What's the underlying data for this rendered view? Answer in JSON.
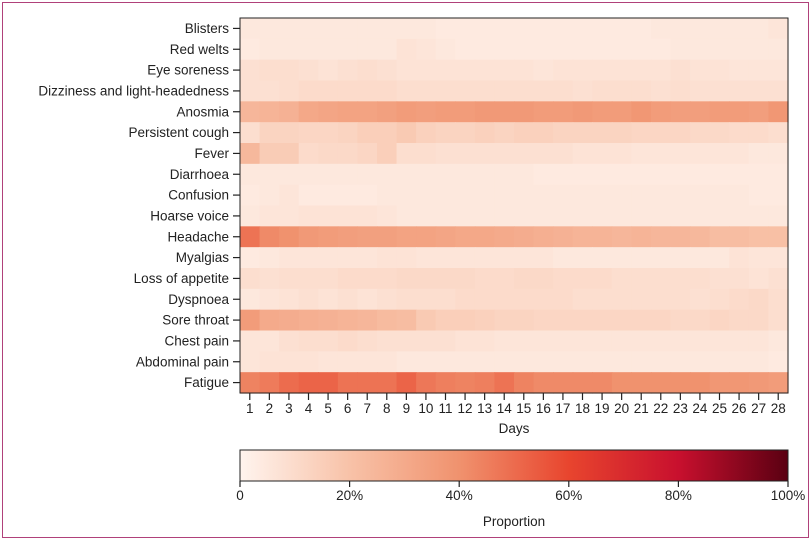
{
  "chart_data": {
    "type": "heatmap",
    "xlabel": "Days",
    "x": [
      "1",
      "2",
      "3",
      "4",
      "5",
      "6",
      "7",
      "8",
      "9",
      "10",
      "11",
      "12",
      "13",
      "14",
      "15",
      "16",
      "17",
      "18",
      "19",
      "20",
      "21",
      "22",
      "23",
      "24",
      "25",
      "26",
      "27",
      "28"
    ],
    "y": [
      "Blisters",
      "Red welts",
      "Eye soreness",
      "Dizziness and light-headedness",
      "Anosmia",
      "Persistent cough",
      "Fever",
      "Diarrhoea",
      "Confusion",
      "Hoarse voice",
      "Headache",
      "Myalgias",
      "Loss of appetite",
      "Dyspnoea",
      "Sore throat",
      "Chest pain",
      "Abdominal pain",
      "Fatigue"
    ],
    "values": [
      [
        0.05,
        0.05,
        0.05,
        0.05,
        0.05,
        0.05,
        0.05,
        0.05,
        0.05,
        0.05,
        0.04,
        0.04,
        0.04,
        0.04,
        0.04,
        0.04,
        0.04,
        0.04,
        0.04,
        0.04,
        0.04,
        0.05,
        0.05,
        0.05,
        0.05,
        0.05,
        0.05,
        0.06
      ],
      [
        0.04,
        0.05,
        0.05,
        0.05,
        0.05,
        0.05,
        0.05,
        0.05,
        0.07,
        0.06,
        0.05,
        0.04,
        0.04,
        0.04,
        0.04,
        0.04,
        0.04,
        0.04,
        0.04,
        0.04,
        0.04,
        0.04,
        0.05,
        0.05,
        0.05,
        0.05,
        0.05,
        0.05
      ],
      [
        0.08,
        0.09,
        0.09,
        0.08,
        0.07,
        0.08,
        0.09,
        0.08,
        0.07,
        0.07,
        0.07,
        0.07,
        0.07,
        0.07,
        0.07,
        0.06,
        0.07,
        0.07,
        0.07,
        0.07,
        0.07,
        0.07,
        0.08,
        0.07,
        0.07,
        0.06,
        0.06,
        0.06
      ],
      [
        0.08,
        0.08,
        0.09,
        0.1,
        0.1,
        0.1,
        0.1,
        0.1,
        0.09,
        0.09,
        0.09,
        0.09,
        0.09,
        0.09,
        0.09,
        0.09,
        0.09,
        0.08,
        0.09,
        0.09,
        0.09,
        0.08,
        0.09,
        0.08,
        0.08,
        0.08,
        0.08,
        0.08
      ],
      [
        0.25,
        0.26,
        0.27,
        0.31,
        0.32,
        0.33,
        0.33,
        0.34,
        0.36,
        0.35,
        0.36,
        0.36,
        0.37,
        0.37,
        0.37,
        0.36,
        0.36,
        0.37,
        0.36,
        0.36,
        0.38,
        0.36,
        0.35,
        0.35,
        0.36,
        0.36,
        0.35,
        0.38
      ],
      [
        0.09,
        0.13,
        0.13,
        0.12,
        0.12,
        0.13,
        0.15,
        0.15,
        0.17,
        0.14,
        0.13,
        0.13,
        0.14,
        0.13,
        0.14,
        0.14,
        0.13,
        0.13,
        0.13,
        0.13,
        0.12,
        0.12,
        0.12,
        0.11,
        0.11,
        0.1,
        0.1,
        0.09
      ],
      [
        0.24,
        0.16,
        0.16,
        0.1,
        0.11,
        0.11,
        0.12,
        0.15,
        0.09,
        0.09,
        0.08,
        0.08,
        0.08,
        0.08,
        0.08,
        0.08,
        0.08,
        0.07,
        0.07,
        0.07,
        0.06,
        0.06,
        0.06,
        0.06,
        0.06,
        0.06,
        0.05,
        0.05
      ],
      [
        0.05,
        0.05,
        0.05,
        0.05,
        0.05,
        0.05,
        0.05,
        0.05,
        0.05,
        0.05,
        0.05,
        0.05,
        0.05,
        0.05,
        0.05,
        0.04,
        0.04,
        0.04,
        0.04,
        0.04,
        0.04,
        0.04,
        0.04,
        0.04,
        0.04,
        0.04,
        0.04,
        0.04
      ],
      [
        0.04,
        0.05,
        0.06,
        0.04,
        0.04,
        0.04,
        0.04,
        0.05,
        0.05,
        0.05,
        0.05,
        0.05,
        0.05,
        0.05,
        0.05,
        0.05,
        0.05,
        0.05,
        0.05,
        0.05,
        0.05,
        0.05,
        0.05,
        0.05,
        0.05,
        0.05,
        0.04,
        0.04
      ],
      [
        0.05,
        0.06,
        0.06,
        0.07,
        0.07,
        0.07,
        0.07,
        0.06,
        0.05,
        0.05,
        0.05,
        0.05,
        0.05,
        0.05,
        0.05,
        0.05,
        0.05,
        0.05,
        0.05,
        0.05,
        0.05,
        0.05,
        0.05,
        0.05,
        0.05,
        0.05,
        0.05,
        0.05
      ],
      [
        0.48,
        0.42,
        0.4,
        0.37,
        0.36,
        0.35,
        0.34,
        0.34,
        0.33,
        0.33,
        0.32,
        0.31,
        0.31,
        0.3,
        0.29,
        0.28,
        0.27,
        0.26,
        0.26,
        0.25,
        0.26,
        0.25,
        0.25,
        0.24,
        0.22,
        0.22,
        0.21,
        0.21
      ],
      [
        0.04,
        0.05,
        0.06,
        0.06,
        0.06,
        0.06,
        0.06,
        0.07,
        0.07,
        0.06,
        0.06,
        0.06,
        0.06,
        0.06,
        0.06,
        0.06,
        0.05,
        0.05,
        0.05,
        0.05,
        0.05,
        0.05,
        0.05,
        0.05,
        0.05,
        0.07,
        0.06,
        0.06
      ],
      [
        0.09,
        0.08,
        0.09,
        0.09,
        0.09,
        0.1,
        0.1,
        0.1,
        0.11,
        0.11,
        0.11,
        0.11,
        0.1,
        0.1,
        0.11,
        0.11,
        0.1,
        0.1,
        0.1,
        0.09,
        0.09,
        0.09,
        0.09,
        0.09,
        0.08,
        0.08,
        0.07,
        0.08
      ],
      [
        0.05,
        0.06,
        0.07,
        0.08,
        0.07,
        0.08,
        0.07,
        0.08,
        0.09,
        0.09,
        0.09,
        0.1,
        0.1,
        0.1,
        0.1,
        0.1,
        0.1,
        0.09,
        0.09,
        0.09,
        0.09,
        0.09,
        0.09,
        0.08,
        0.09,
        0.1,
        0.11,
        0.09
      ],
      [
        0.36,
        0.3,
        0.29,
        0.28,
        0.27,
        0.26,
        0.25,
        0.23,
        0.22,
        0.17,
        0.15,
        0.15,
        0.14,
        0.13,
        0.13,
        0.12,
        0.12,
        0.12,
        0.12,
        0.12,
        0.12,
        0.12,
        0.11,
        0.11,
        0.12,
        0.11,
        0.11,
        0.09
      ],
      [
        0.06,
        0.06,
        0.08,
        0.09,
        0.09,
        0.1,
        0.09,
        0.08,
        0.08,
        0.08,
        0.08,
        0.07,
        0.07,
        0.06,
        0.06,
        0.06,
        0.06,
        0.06,
        0.06,
        0.06,
        0.06,
        0.06,
        0.06,
        0.06,
        0.06,
        0.06,
        0.06,
        0.05
      ],
      [
        0.06,
        0.07,
        0.07,
        0.07,
        0.06,
        0.06,
        0.06,
        0.06,
        0.05,
        0.05,
        0.05,
        0.05,
        0.05,
        0.05,
        0.05,
        0.05,
        0.05,
        0.05,
        0.05,
        0.05,
        0.05,
        0.05,
        0.05,
        0.05,
        0.05,
        0.05,
        0.05,
        0.04
      ],
      [
        0.44,
        0.46,
        0.5,
        0.52,
        0.52,
        0.48,
        0.48,
        0.48,
        0.52,
        0.47,
        0.45,
        0.44,
        0.45,
        0.48,
        0.44,
        0.42,
        0.42,
        0.42,
        0.42,
        0.4,
        0.4,
        0.4,
        0.4,
        0.4,
        0.38,
        0.38,
        0.37,
        0.36
      ]
    ],
    "colorbar": {
      "title": "Proportion",
      "range": [
        0,
        1
      ],
      "ticks": [
        "0",
        "20%",
        "40%",
        "60%",
        "80%",
        "100%"
      ],
      "colors": [
        "#fff4ee",
        "#f8c2a8",
        "#f0926e",
        "#e8452e",
        "#c8102e",
        "#5a0012"
      ]
    }
  }
}
